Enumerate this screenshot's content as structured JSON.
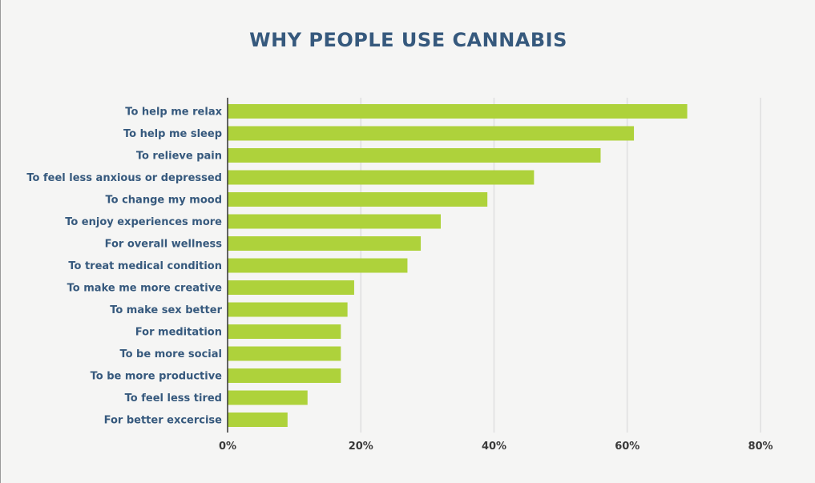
{
  "chart_data": {
    "type": "bar",
    "orientation": "horizontal",
    "title": "WHY PEOPLE USE CANNABIS",
    "xlabel": "",
    "ylabel": "",
    "categories": [
      "To help me relax",
      "To help me sleep",
      "To relieve pain",
      "To feel less anxious or depressed",
      "To change my mood",
      "To enjoy experiences more",
      "For overall wellness",
      "To treat medical condition",
      "To make me more creative",
      "To make sex better",
      "For meditation",
      "To be more social",
      "To be more productive",
      "To feel less tired",
      "For better excercise"
    ],
    "values": [
      69,
      61,
      56,
      46,
      39,
      32,
      29,
      27,
      19,
      18,
      17,
      17,
      17,
      12,
      9
    ],
    "xlim": [
      0,
      80
    ],
    "x_ticks": [
      0,
      20,
      40,
      60,
      80
    ],
    "x_tick_labels": [
      "0%",
      "20%",
      "40%",
      "60%",
      "80%"
    ],
    "grid": "vertical",
    "legend": "none",
    "colors": {
      "bar": "#aed23b",
      "title": "#36597d",
      "category_text": "#36597d",
      "tick_text": "#3a3a3a",
      "gridline": "#e4e4e4",
      "axis": "#333333",
      "background": "#f5f5f4"
    }
  }
}
